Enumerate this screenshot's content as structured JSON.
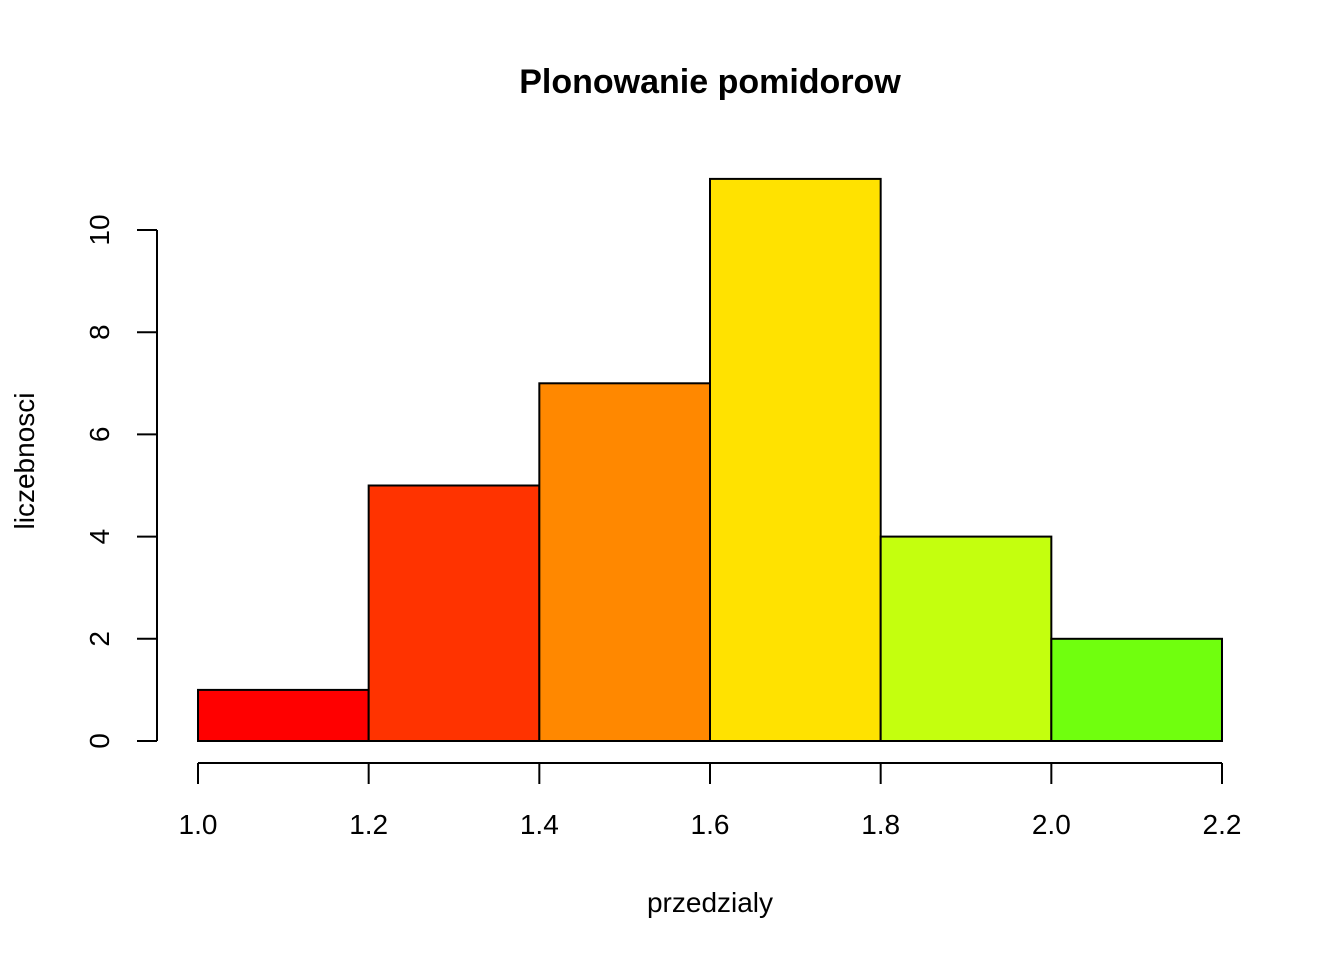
{
  "chart_data": {
    "type": "bar",
    "title": "Plonowanie pomidorow",
    "xlabel": "przedzialy",
    "ylabel": "liczebnosci",
    "bins": [
      {
        "from": 1.0,
        "to": 1.2,
        "count": 1,
        "color": "#FF0000"
      },
      {
        "from": 1.2,
        "to": 1.4,
        "count": 5,
        "color": "#FF3300"
      },
      {
        "from": 1.4,
        "to": 1.6,
        "count": 7,
        "color": "#FF8800"
      },
      {
        "from": 1.6,
        "to": 1.8,
        "count": 11,
        "color": "#FFE200"
      },
      {
        "from": 1.8,
        "to": 2.0,
        "count": 4,
        "color": "#C4FF0E"
      },
      {
        "from": 2.0,
        "to": 2.2,
        "count": 2,
        "color": "#70FF0E"
      }
    ],
    "xlim": [
      1.0,
      2.2
    ],
    "ylim": [
      0,
      11
    ],
    "x_ticks": [
      "1.0",
      "1.2",
      "1.4",
      "1.6",
      "1.8",
      "2.0",
      "2.2"
    ],
    "y_ticks": [
      "0",
      "2",
      "4",
      "6",
      "8",
      "10"
    ],
    "grid": false,
    "legend": "none"
  }
}
